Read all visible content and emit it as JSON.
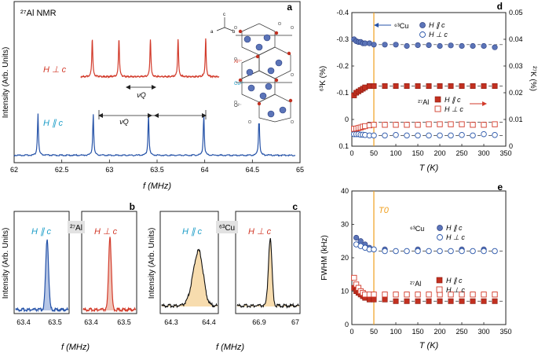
{
  "figure": {
    "panels": {
      "a": {
        "label": "a",
        "title": "²⁷Al NMR",
        "ylabel": "Intensity (Arb. Units)",
        "xlabel": "f (MHz)",
        "xticks": [
          "62",
          "62.5",
          "63",
          "63.5",
          "64",
          "64.5",
          "65"
        ],
        "trace_perp": {
          "label": "H ⊥ c",
          "color": "#d23a2a"
        },
        "trace_par": {
          "label": "H ∥ c",
          "color": "#2653a8"
        },
        "nuQ_label": "νQ",
        "crystal_labels": {
          "al": "Al³⁺",
          "cu": "Cu¹⁺",
          "o": "O²⁻"
        },
        "axes_labels": {
          "a": "a",
          "b": "b",
          "c": "c"
        }
      },
      "b": {
        "label": "b",
        "nucleus": "²⁷Al",
        "ylabel": "Intensity (Arb. Units)",
        "xlabel": "f (MHz)",
        "left": {
          "label": "H ∥ c",
          "xticks": [
            "63.4",
            "63.5"
          ],
          "color": "#2653a8",
          "fill": "#b6c6e6"
        },
        "right": {
          "label": "H ⊥ c",
          "xticks": [
            "63.4",
            "63.5"
          ],
          "color": "#d23a2a",
          "fill": "#f0c4b8"
        }
      },
      "c": {
        "label": "c",
        "nucleus": "⁶³Cu",
        "ylabel": "Intensity (Arb. Units)",
        "xlabel": "f (MHz)",
        "left": {
          "label": "H ∥ c",
          "xticks": [
            "64.3",
            "64.4"
          ],
          "color": "#111111",
          "fill": "#f7dcae"
        },
        "right": {
          "label": "H ⊥ c",
          "xticks": [
            "66.9",
            "67"
          ],
          "color": "#111111",
          "fill": "#f7dcae"
        }
      },
      "d": {
        "label": "d",
        "ylabel_left": "⁶³K (%)",
        "ylabel_right": "²⁷K (%)",
        "xlabel": "T (K)",
        "yticks_left": [
          "-0.4",
          "-0.3",
          "-0.2",
          "-0.1",
          "0",
          "0.1"
        ],
        "yticks_right": [
          "0.05",
          "0.04",
          "0.03",
          "0.02",
          "0.01",
          "0"
        ],
        "xticks": [
          "0",
          "50",
          "100",
          "150",
          "200",
          "250",
          "300",
          "350"
        ],
        "legend_cu": {
          "nucleus": "⁶³Cu",
          "par": "H ∥ c",
          "perp": "H ⊥ c"
        },
        "legend_al": {
          "nucleus": "²⁷Al",
          "par": "H ∥ c",
          "perp": "H ⊥ c"
        }
      },
      "e": {
        "label": "e",
        "ylabel": "FWHM (kHz)",
        "xlabel": "T (K)",
        "t0_label": "T0",
        "yticks": [
          "0",
          "10",
          "20",
          "30",
          "40"
        ],
        "xticks": [
          "0",
          "50",
          "100",
          "150",
          "200",
          "250",
          "300",
          "350"
        ],
        "legend_cu": {
          "nucleus": "⁶³Cu",
          "par": "H ∥ c",
          "perp": "H ⊥ c"
        },
        "legend_al": {
          "nucleus": "²⁷Al",
          "par": "H ∥ c",
          "perp": "H ⊥ c"
        }
      }
    },
    "colors": {
      "cu_fill": "#5b74b8",
      "cu_edge": "#2c3f80",
      "al_fill": "#c23020",
      "al_edge": "#8a1a10",
      "t0_line": "#f0a020"
    }
  },
  "chart_data": [
    {
      "panel": "a",
      "type": "line",
      "xlim": [
        62,
        65
      ],
      "series": [
        {
          "name": "H ⊥ c",
          "peaks_MHz": [
            62.82,
            63.1,
            63.43,
            63.72,
            64.01
          ]
        },
        {
          "name": "H ∥ c",
          "peaks_MHz": [
            62.25,
            62.83,
            63.41,
            63.99,
            64.57
          ]
        }
      ]
    },
    {
      "panel": "b",
      "type": "line",
      "series": [
        {
          "name": "H ∥ c",
          "peak_MHz": 63.43,
          "xlim": [
            63.35,
            63.5
          ]
        },
        {
          "name": "H ⊥ c",
          "peak_MHz": 63.42,
          "xlim": [
            63.35,
            63.5
          ]
        }
      ]
    },
    {
      "panel": "c",
      "type": "line",
      "series": [
        {
          "name": "H ∥ c",
          "peak_MHz": 64.33,
          "xlim": [
            64.25,
            64.45
          ]
        },
        {
          "name": "H ⊥ c",
          "peak_MHz": 66.93,
          "xlim": [
            66.85,
            67.0
          ]
        }
      ]
    },
    {
      "panel": "d",
      "type": "scatter",
      "xlim": [
        0,
        350
      ],
      "ylim_left": [
        -0.4,
        0.1
      ],
      "ylim_right": [
        0.05,
        0
      ],
      "reference_lines_left": [
        -0.28,
        -0.125,
        0.01,
        0.06
      ],
      "t0_K": 50,
      "series": [
        {
          "name": "⁶³Cu H ∥ c",
          "axis": "left",
          "x": [
            5,
            10,
            15,
            20,
            25,
            30,
            40,
            50,
            75,
            100,
            125,
            150,
            175,
            200,
            225,
            250,
            275,
            300,
            325
          ],
          "y": [
            -0.3,
            -0.293,
            -0.29,
            -0.29,
            -0.285,
            -0.285,
            -0.285,
            -0.28,
            -0.28,
            -0.28,
            -0.275,
            -0.278,
            -0.278,
            -0.275,
            -0.277,
            -0.275,
            -0.275,
            -0.275,
            -0.27
          ]
        },
        {
          "name": "⁶³Cu H ⊥ c",
          "axis": "left",
          "x": [
            5,
            10,
            15,
            20,
            25,
            30,
            40,
            50,
            75,
            100,
            125,
            150,
            175,
            200,
            225,
            250,
            275,
            300,
            325
          ],
          "y": [
            0.055,
            0.055,
            0.055,
            0.057,
            0.057,
            0.058,
            0.06,
            0.06,
            0.06,
            0.058,
            0.06,
            0.06,
            0.06,
            0.06,
            0.06,
            0.058,
            0.06,
            0.055,
            0.058
          ]
        },
        {
          "name": "²⁷Al H ∥ c",
          "axis": "right",
          "x": [
            5,
            10,
            15,
            20,
            25,
            30,
            40,
            50,
            75,
            100,
            125,
            150,
            175,
            200,
            225,
            250,
            275,
            300,
            325
          ],
          "y": [
            0.019,
            0.02,
            0.0205,
            0.021,
            0.0215,
            0.022,
            0.0225,
            0.0225,
            0.0225,
            0.0225,
            0.0225,
            0.0225,
            0.0225,
            0.0225,
            0.0225,
            0.0225,
            0.0225,
            0.0225,
            0.0225
          ]
        },
        {
          "name": "²⁷Al H ⊥ c",
          "axis": "right",
          "x": [
            5,
            10,
            15,
            20,
            25,
            30,
            40,
            50,
            75,
            100,
            125,
            150,
            175,
            200,
            225,
            250,
            275,
            300,
            325
          ],
          "y": [
            0.0065,
            0.0066,
            0.0068,
            0.007,
            0.0073,
            0.0075,
            0.0078,
            0.008,
            0.008,
            0.008,
            0.008,
            0.008,
            0.0082,
            0.0082,
            0.0082,
            0.0082,
            0.008,
            0.008,
            0.0082
          ]
        }
      ]
    },
    {
      "panel": "e",
      "type": "scatter",
      "xlim": [
        0,
        350
      ],
      "ylim": [
        0,
        40
      ],
      "reference_lines": [
        22,
        7
      ],
      "t0_K": 50,
      "series": [
        {
          "name": "⁶³Cu H ∥ c",
          "x": [
            10,
            20,
            30,
            40,
            50,
            75,
            100,
            125,
            150,
            175,
            200,
            225,
            250,
            275,
            300,
            325
          ],
          "y": [
            26,
            25,
            24,
            23,
            22.5,
            22.5,
            22,
            22,
            22.5,
            22,
            22,
            22,
            22.5,
            22,
            22.5,
            22
          ]
        },
        {
          "name": "⁶³Cu H ⊥ c",
          "x": [
            10,
            20,
            30,
            40,
            50,
            75,
            100,
            125,
            150,
            175,
            200,
            225,
            250,
            275,
            300,
            325
          ],
          "y": [
            24,
            23.5,
            23,
            22.5,
            22.5,
            22,
            22,
            22,
            22,
            22,
            22,
            22,
            22,
            22,
            22,
            22
          ]
        },
        {
          "name": "²⁷Al H ∥ c",
          "x": [
            5,
            10,
            15,
            20,
            25,
            30,
            40,
            50,
            75,
            100,
            125,
            150,
            175,
            200,
            225,
            250,
            275,
            300,
            325
          ],
          "y": [
            11,
            10,
            9.5,
            9,
            8.5,
            8,
            7.5,
            7.5,
            7.5,
            7,
            7,
            7,
            7,
            7,
            7,
            7,
            7,
            7,
            7
          ]
        },
        {
          "name": "²⁷Al H ⊥ c",
          "x": [
            5,
            10,
            15,
            20,
            25,
            30,
            40,
            50,
            75,
            100,
            125,
            150,
            175,
            200,
            225,
            250,
            275,
            300,
            325
          ],
          "y": [
            14,
            12,
            11,
            10,
            9.5,
            9,
            9,
            9,
            9,
            9,
            9,
            9,
            9,
            9,
            9,
            9,
            9,
            9,
            9
          ]
        }
      ]
    }
  ]
}
